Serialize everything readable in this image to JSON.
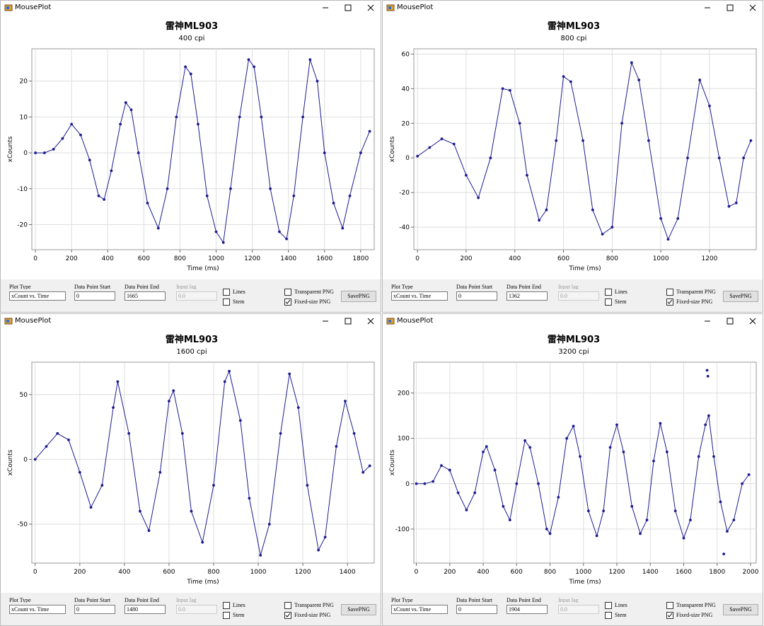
{
  "windows": [
    {
      "title": "MousePlot",
      "chart_data": {
        "type": "line",
        "title": "雷神ML903",
        "subtitle": "400 cpi",
        "x_label": "Time (ms)",
        "y_label": "xCounts",
        "color": "#1c1c8f",
        "grid": true,
        "x": [
          0,
          50,
          100,
          150,
          200,
          250,
          300,
          350,
          380,
          420,
          470,
          500,
          530,
          570,
          620,
          680,
          730,
          780,
          830,
          860,
          900,
          950,
          1000,
          1040,
          1080,
          1130,
          1180,
          1210,
          1250,
          1300,
          1350,
          1390,
          1430,
          1480,
          1520,
          1560,
          1600,
          1650,
          1700,
          1740,
          1800,
          1850
        ],
        "values": [
          0,
          0,
          1,
          4,
          8,
          5,
          -2,
          -12,
          -13,
          -5,
          8,
          14,
          12,
          0,
          -14,
          -21,
          -10,
          10,
          24,
          22,
          8,
          -12,
          -22,
          -25,
          -10,
          10,
          26,
          24,
          10,
          -10,
          -22,
          -24,
          -12,
          10,
          26,
          20,
          0,
          -14,
          -21,
          -12,
          0,
          6
        ],
        "xlim": [
          -20,
          1875
        ],
        "ylim": [
          -27,
          29
        ],
        "xticks": [
          0,
          200,
          400,
          600,
          800,
          1000,
          1200,
          1400,
          1600,
          1800
        ],
        "yticks": [
          -20,
          -10,
          0,
          10,
          20
        ]
      },
      "controls": {
        "plot_type_label": "Plot Type",
        "plot_type": "xCount vs. Time",
        "start_label": "Data Point Start",
        "start": "0",
        "end_label": "Data Point End",
        "end": "1665",
        "lag_label": "Input lag",
        "lag": "0.0",
        "lines": "Lines",
        "stem": "Stem",
        "transparent": "Transparent PNG",
        "fixed": "Fixed-size PNG",
        "fixed_checked": true,
        "save": "SavePNG"
      }
    },
    {
      "title": "MousePlot",
      "chart_data": {
        "type": "line",
        "title": "雷神ML903",
        "subtitle": "800 cpi",
        "x_label": "Time (ms)",
        "y_label": "xCounts",
        "color": "#1c1c8f",
        "grid": true,
        "x": [
          0,
          50,
          100,
          150,
          200,
          250,
          300,
          350,
          380,
          420,
          450,
          500,
          530,
          570,
          600,
          630,
          680,
          720,
          760,
          800,
          840,
          880,
          910,
          950,
          1000,
          1030,
          1070,
          1110,
          1160,
          1200,
          1240,
          1280,
          1310,
          1340,
          1370
        ],
        "values": [
          1,
          6,
          11,
          8,
          -10,
          -23,
          0,
          40,
          39,
          20,
          -10,
          -36,
          -30,
          10,
          47,
          44,
          10,
          -30,
          -44,
          -40,
          20,
          55,
          45,
          10,
          -35,
          -47,
          -35,
          0,
          45,
          30,
          0,
          -28,
          -26,
          0,
          10
        ],
        "xlim": [
          -15,
          1392
        ],
        "ylim": [
          -53,
          63
        ],
        "xticks": [
          0,
          200,
          400,
          600,
          800,
          1000,
          1200
        ],
        "yticks": [
          -40,
          -20,
          0,
          20,
          40,
          60
        ]
      },
      "controls": {
        "plot_type_label": "Plot Type",
        "plot_type": "xCount vs. Time",
        "start_label": "Data Point Start",
        "start": "0",
        "end_label": "Data Point End",
        "end": "1362",
        "lag_label": "Input lag",
        "lag": "0.0",
        "lines": "Lines",
        "stem": "Stem",
        "transparent": "Transparent PNG",
        "fixed": "Fixed-size PNG",
        "fixed_checked": true,
        "save": "SavePNG"
      }
    },
    {
      "title": "MousePlot",
      "chart_data": {
        "type": "line",
        "title": "雷神ML903",
        "subtitle": "1600 cpi",
        "x_label": "Time (ms)",
        "y_label": "xCounts",
        "color": "#1c1c8f",
        "grid": true,
        "x": [
          0,
          50,
          100,
          150,
          200,
          250,
          300,
          350,
          370,
          420,
          470,
          510,
          560,
          600,
          620,
          660,
          700,
          750,
          800,
          850,
          870,
          920,
          960,
          1010,
          1050,
          1100,
          1140,
          1180,
          1220,
          1270,
          1300,
          1350,
          1390,
          1430,
          1470,
          1500
        ],
        "values": [
          0,
          10,
          20,
          15,
          -10,
          -37,
          -20,
          40,
          60,
          20,
          -40,
          -55,
          -10,
          45,
          53,
          20,
          -40,
          -64,
          -20,
          60,
          68,
          30,
          -30,
          -74,
          -50,
          20,
          66,
          40,
          -20,
          -70,
          -60,
          10,
          45,
          20,
          -10,
          -5
        ],
        "xlim": [
          -15,
          1520
        ],
        "ylim": [
          -80,
          75
        ],
        "xticks": [
          0,
          200,
          400,
          600,
          800,
          1000,
          1200,
          1400
        ],
        "yticks": [
          -50,
          0,
          50
        ]
      },
      "controls": {
        "plot_type_label": "Plot Type",
        "plot_type": "xCount vs. Time",
        "start_label": "Data Point Start",
        "start": "0",
        "end_label": "Data Point End",
        "end": "1480",
        "lag_label": "Input lag",
        "lag": "0.0",
        "lines": "Lines",
        "stem": "Stem",
        "transparent": "Transparent PNG",
        "fixed": "Fixed-size PNG",
        "fixed_checked": true,
        "save": "SavePNG"
      }
    },
    {
      "title": "MousePlot",
      "chart_data": {
        "type": "line",
        "title": "雷神ML903",
        "subtitle": "3200 cpi",
        "x_label": "Time (ms)",
        "y_label": "xCounts",
        "color": "#1c1c8f",
        "grid": true,
        "x": [
          0,
          50,
          100,
          150,
          200,
          250,
          300,
          350,
          400,
          420,
          470,
          520,
          560,
          600,
          650,
          680,
          730,
          780,
          800,
          850,
          900,
          940,
          980,
          1030,
          1080,
          1120,
          1160,
          1200,
          1240,
          1290,
          1340,
          1380,
          1420,
          1460,
          1500,
          1550,
          1600,
          1640,
          1690,
          1730,
          1750,
          1780,
          1820,
          1860,
          1900,
          1950,
          1990
        ],
        "values": [
          0,
          0,
          5,
          40,
          30,
          -20,
          -58,
          -20,
          70,
          82,
          30,
          -50,
          -80,
          0,
          95,
          80,
          0,
          -100,
          -110,
          -30,
          100,
          127,
          60,
          -60,
          -115,
          -60,
          80,
          130,
          70,
          -50,
          -110,
          -80,
          50,
          133,
          70,
          -60,
          -120,
          -80,
          60,
          130,
          150,
          60,
          -40,
          -105,
          -80,
          0,
          20
        ],
        "outliers": {
          "x": [
            1740,
            1745,
            1840
          ],
          "values": [
            250,
            237,
            -155
          ]
        },
        "xlim": [
          -15,
          2034
        ],
        "ylim": [
          -175,
          268
        ],
        "xticks": [
          0,
          200,
          400,
          600,
          800,
          1000,
          1200,
          1400,
          1600,
          1800,
          2000
        ],
        "yticks": [
          -100,
          0,
          100,
          200
        ]
      },
      "controls": {
        "plot_type_label": "Plot Type",
        "plot_type": "xCount vs. Time",
        "start_label": "Data Point Start",
        "start": "0",
        "end_label": "Data Point End",
        "end": "1904",
        "lag_label": "Input lag",
        "lag": "0.0",
        "lines": "Lines",
        "stem": "Stem",
        "transparent": "Transparent PNG",
        "fixed": "Fixed-size PNG",
        "fixed_checked": true,
        "save": "SavePNG"
      }
    }
  ]
}
